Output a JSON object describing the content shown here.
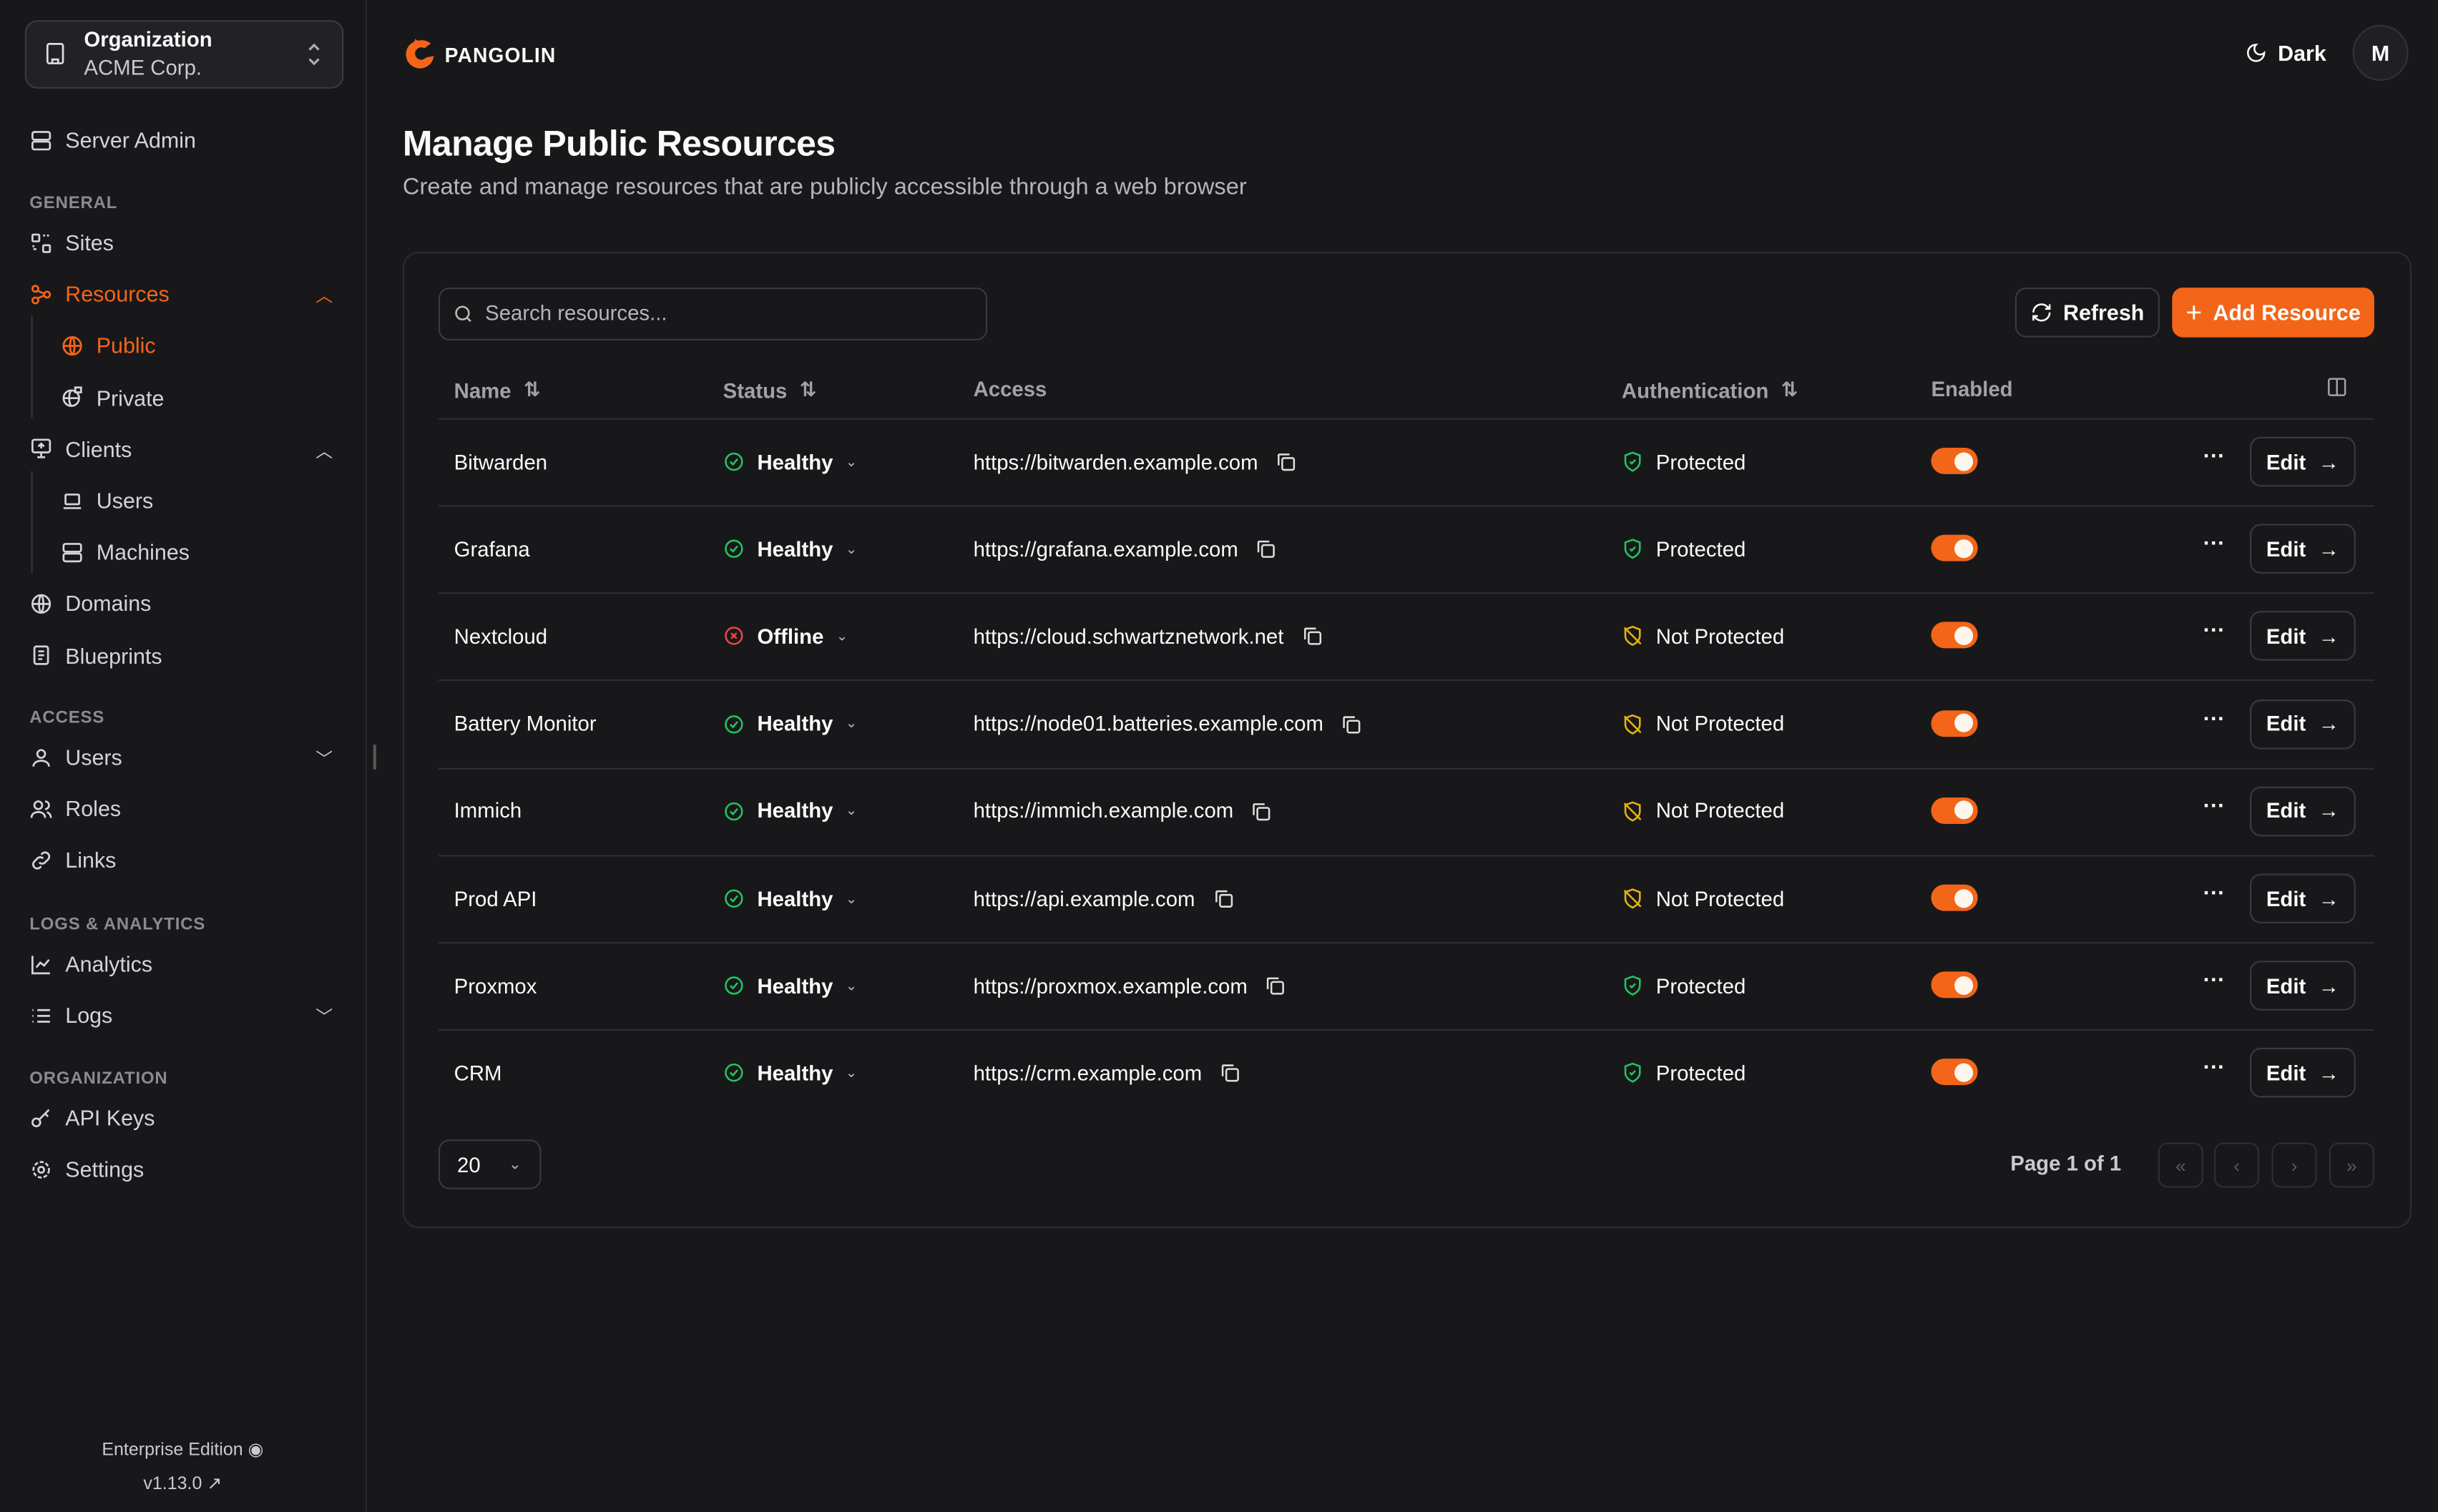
{
  "org": {
    "label": "Organization",
    "name": "ACME Corp."
  },
  "sidebar": {
    "server_admin": "Server Admin",
    "sections": [
      {
        "title": "GENERAL",
        "items": [
          {
            "label": "Sites",
            "icon": "sites-icon"
          },
          {
            "label": "Resources",
            "icon": "resources-icon",
            "active": true,
            "expanded": true,
            "children": [
              {
                "label": "Public",
                "icon": "globe-icon",
                "active": true
              },
              {
                "label": "Private",
                "icon": "globe-lock-icon"
              }
            ]
          },
          {
            "label": "Clients",
            "icon": "monitor-icon",
            "expanded": true,
            "children": [
              {
                "label": "Users",
                "icon": "laptop-icon"
              },
              {
                "label": "Machines",
                "icon": "server-icon"
              }
            ]
          },
          {
            "label": "Domains",
            "icon": "globe-icon"
          },
          {
            "label": "Blueprints",
            "icon": "document-icon"
          }
        ]
      },
      {
        "title": "ACCESS",
        "items": [
          {
            "label": "Users",
            "icon": "user-icon",
            "collapsed": true
          },
          {
            "label": "Roles",
            "icon": "users-icon"
          },
          {
            "label": "Links",
            "icon": "link-icon"
          }
        ]
      },
      {
        "title": "LOGS & ANALYTICS",
        "items": [
          {
            "label": "Analytics",
            "icon": "chart-icon"
          },
          {
            "label": "Logs",
            "icon": "list-icon",
            "collapsed": true
          }
        ]
      },
      {
        "title": "ORGANIZATION",
        "items": [
          {
            "label": "API Keys",
            "icon": "key-icon"
          },
          {
            "label": "Settings",
            "icon": "gear-icon"
          }
        ]
      }
    ],
    "edition": "Enterprise Edition",
    "version": "v1.13.0"
  },
  "header": {
    "brand": "PANGOLIN",
    "theme": "Dark",
    "avatar": "M"
  },
  "page": {
    "title": "Manage Public Resources",
    "subtitle": "Create and manage resources that are publicly accessible through a web browser"
  },
  "toolbar": {
    "search_placeholder": "Search resources...",
    "refresh": "Refresh",
    "add": "Add Resource"
  },
  "table": {
    "columns": [
      "Name",
      "Status",
      "Access",
      "Authentication",
      "Enabled"
    ],
    "edit_label": "Edit",
    "rows": [
      {
        "name": "Bitwarden",
        "status": "Healthy",
        "access": "https://bitwarden.example.com",
        "auth": "Protected",
        "enabled": true
      },
      {
        "name": "Grafana",
        "status": "Healthy",
        "access": "https://grafana.example.com",
        "auth": "Protected",
        "enabled": true
      },
      {
        "name": "Nextcloud",
        "status": "Offline",
        "access": "https://cloud.schwartznetwork.net",
        "auth": "Not Protected",
        "enabled": true
      },
      {
        "name": "Battery Monitor",
        "status": "Healthy",
        "access": "https://node01.batteries.example.com",
        "auth": "Not Protected",
        "enabled": true
      },
      {
        "name": "Immich",
        "status": "Healthy",
        "access": "https://immich.example.com",
        "auth": "Not Protected",
        "enabled": true
      },
      {
        "name": "Prod API",
        "status": "Healthy",
        "access": "https://api.example.com",
        "auth": "Not Protected",
        "enabled": true
      },
      {
        "name": "Proxmox",
        "status": "Healthy",
        "access": "https://proxmox.example.com",
        "auth": "Protected",
        "enabled": true
      },
      {
        "name": "CRM",
        "status": "Healthy",
        "access": "https://crm.example.com",
        "auth": "Protected",
        "enabled": true
      }
    ]
  },
  "pagination": {
    "page_size": "20",
    "page_info": "Page 1 of 1"
  },
  "colors": {
    "accent": "#f36518",
    "healthy": "#22c55e",
    "offline": "#ef4444",
    "unprotected": "#eab308",
    "background": "#18181b"
  }
}
